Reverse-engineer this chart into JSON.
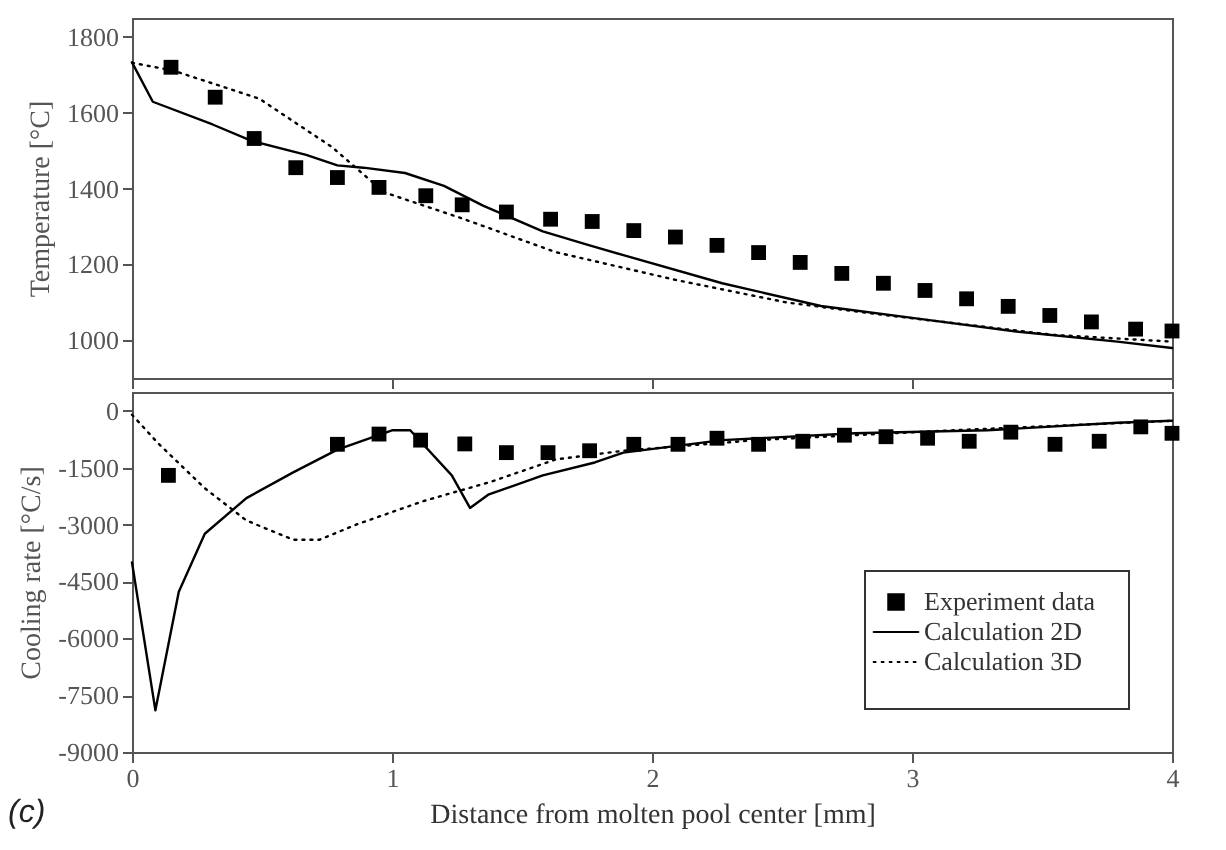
{
  "chart_data": [
    {
      "type": "line",
      "ylabel": "Temperature [°C]",
      "xlim": [
        0,
        4
      ],
      "xticks": [
        0,
        1,
        2,
        3,
        4
      ],
      "ylim": [
        900,
        1850
      ],
      "yticks": [
        1000,
        1200,
        1400,
        1600,
        1800
      ],
      "tick_labels": "y",
      "grid": false,
      "legend": false,
      "series": [
        {
          "type": "scatter",
          "marker": "square",
          "color": "#000000",
          "x": [
            0.15,
            0.32,
            0.47,
            0.63,
            0.79,
            0.95,
            1.13,
            1.27,
            1.44,
            1.61,
            1.77,
            1.93,
            2.09,
            2.25,
            2.41,
            2.57,
            2.73,
            2.89,
            3.05,
            3.21,
            3.37,
            3.53,
            3.69,
            3.86,
            4.0
          ],
          "values": [
            1720,
            1641,
            1532,
            1455,
            1429,
            1403,
            1381,
            1357,
            1338,
            1319,
            1313,
            1289,
            1272,
            1250,
            1231,
            1205,
            1176,
            1150,
            1131,
            1109,
            1089,
            1065,
            1048,
            1029,
            1024
          ]
        },
        {
          "type": "line",
          "line_style": "solid",
          "color": "#000000",
          "x": [
            0,
            0.08,
            0.31,
            0.46,
            0.67,
            0.79,
            0.89,
            1.05,
            1.2,
            1.35,
            1.58,
            1.76,
            1.89,
            2.27,
            2.65,
            3.03,
            3.41,
            3.79,
            4.0
          ],
          "values": [
            1733,
            1629,
            1569,
            1526,
            1489,
            1461,
            1455,
            1441,
            1407,
            1355,
            1287,
            1250,
            1224,
            1150,
            1090,
            1056,
            1022,
            996,
            979
          ]
        },
        {
          "type": "line",
          "line_style": "dotted",
          "color": "#000000",
          "x": [
            0,
            0.16,
            0.49,
            0.77,
            0.97,
            1.27,
            1.63,
            2.09,
            2.52,
            2.91,
            3.54,
            4.0
          ],
          "values": [
            1732,
            1711,
            1637,
            1509,
            1390,
            1321,
            1232,
            1159,
            1099,
            1065,
            1014,
            996
          ]
        }
      ]
    },
    {
      "type": "line",
      "xlabel": "Distance from molten pool center [mm]",
      "ylabel": "Cooling rate [°C/s]",
      "xlim": [
        0,
        4
      ],
      "xticks": [
        0,
        1,
        2,
        3,
        4
      ],
      "ylim": [
        -9000,
        500
      ],
      "yticks": [
        0,
        -1500,
        -3000,
        -4500,
        -6000,
        -7500,
        -9000
      ],
      "grid": false,
      "legend": "bottom right",
      "annotations": [
        "(c)"
      ],
      "series": [
        {
          "name": "Experiment data",
          "type": "scatter",
          "marker": "square",
          "color": "#000000",
          "x": [
            0.14,
            0.79,
            0.95,
            1.11,
            1.28,
            1.44,
            1.6,
            1.76,
            1.93,
            2.1,
            2.25,
            2.41,
            2.58,
            2.74,
            2.9,
            3.06,
            3.22,
            3.38,
            3.55,
            3.72,
            3.88,
            4.0
          ],
          "values": [
            -1700,
            -880,
            -610,
            -770,
            -870,
            -1100,
            -1100,
            -1050,
            -880,
            -880,
            -720,
            -880,
            -800,
            -640,
            -680,
            -720,
            -800,
            -560,
            -880,
            -800,
            -420,
            -590
          ]
        },
        {
          "name": "Calculation 2D",
          "type": "line",
          "line_style": "solid",
          "color": "#000000",
          "x": [
            0,
            0.09,
            0.18,
            0.28,
            0.44,
            0.62,
            0.79,
            1.0,
            1.07,
            1.23,
            1.3,
            1.37,
            1.58,
            1.78,
            1.89,
            2.27,
            2.78,
            3.29,
            3.79,
            4.0
          ],
          "values": [
            -4000,
            -7900,
            -4770,
            -3240,
            -2300,
            -1620,
            -1020,
            -510,
            -510,
            -1700,
            -2560,
            -2210,
            -1700,
            -1360,
            -1100,
            -770,
            -590,
            -510,
            -310,
            -260
          ]
        },
        {
          "name": "Calculation 3D",
          "type": "line",
          "line_style": "dotted",
          "color": "#000000",
          "x": [
            0,
            0.1,
            0.28,
            0.44,
            0.62,
            0.72,
            0.87,
            1.12,
            1.38,
            1.63,
            1.89,
            2.4,
            3.16,
            4.0
          ],
          "values": [
            -100,
            -850,
            -2040,
            -2890,
            -3400,
            -3400,
            -2980,
            -2380,
            -1870,
            -1280,
            -1050,
            -770,
            -510,
            -260
          ]
        }
      ]
    }
  ]
}
